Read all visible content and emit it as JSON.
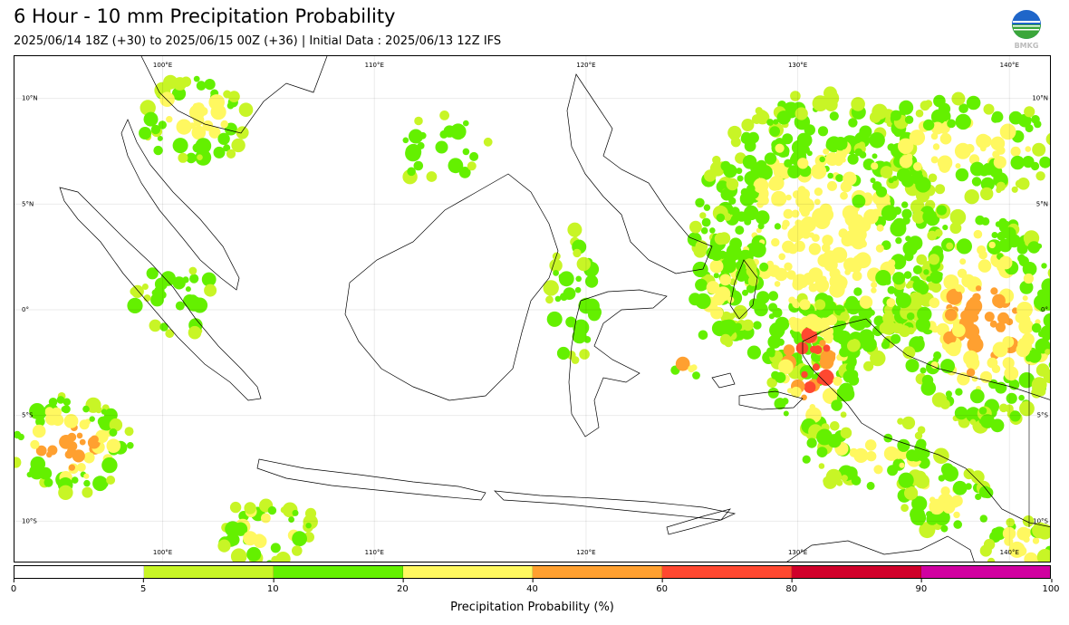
{
  "header": {
    "title": "6 Hour - 10 mm Precipitation Probability",
    "subtitle": "2025/06/14 18Z (+30) to 2025/06/15 00Z (+36) | Initial Data : 2025/06/13 12Z IFS"
  },
  "logo": {
    "text": "BMKG"
  },
  "map": {
    "lon_range": [
      93,
      142
    ],
    "lat_range": [
      -12,
      12
    ],
    "lon_labels": [
      {
        "lon": 100,
        "text": "100°E"
      },
      {
        "lon": 110,
        "text": "110°E"
      },
      {
        "lon": 120,
        "text": "120°E"
      },
      {
        "lon": 130,
        "text": "130°E"
      },
      {
        "lon": 140,
        "text": "140°E"
      }
    ],
    "lat_labels": [
      {
        "lat": 10,
        "text": "10°N"
      },
      {
        "lat": 5,
        "text": "5°N"
      },
      {
        "lat": 0,
        "text": "0°"
      },
      {
        "lat": -5,
        "text": "5°S"
      },
      {
        "lat": -10,
        "text": "10°S"
      }
    ],
    "grid": true
  },
  "colorbar": {
    "label": "Precipitation Probability (%)",
    "ticks": [
      "0",
      "5",
      "10",
      "20",
      "40",
      "60",
      "80",
      "90",
      "100"
    ],
    "colors": [
      "#ffffff",
      "#c8f526",
      "#64f000",
      "#fff860",
      "#ffa030",
      "#ff4830",
      "#d0002a",
      "#d000a0"
    ]
  }
}
